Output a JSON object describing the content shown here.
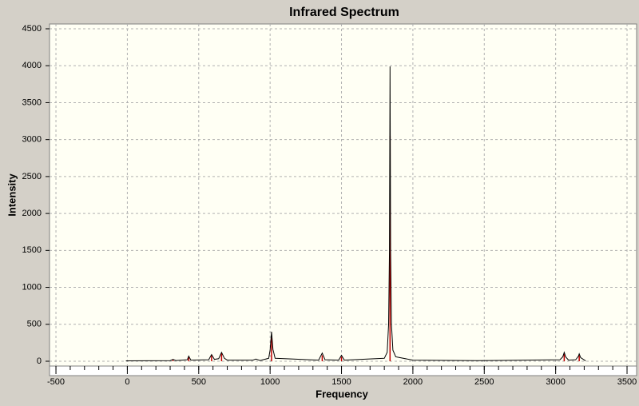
{
  "chart_data": {
    "type": "line",
    "title": "Infrared Spectrum",
    "x_label": "Frequency",
    "y_label": "Intensity",
    "xlim": [
      -545,
      3567
    ],
    "ylim": [
      -65,
      4565
    ],
    "xticks": [
      -500,
      0,
      500,
      1000,
      1500,
      2000,
      2500,
      3000,
      3500
    ],
    "xminorticks": [
      -500,
      -400,
      -300,
      -200,
      -100,
      0,
      100,
      200,
      300,
      400,
      500,
      600,
      700,
      800,
      900,
      1000,
      1100,
      1200,
      1300,
      1400,
      1500,
      1600,
      1700,
      1800,
      1900,
      2000,
      2100,
      2200,
      2300,
      2400,
      2500,
      2600,
      2700,
      2800,
      2900,
      3000,
      3100,
      3200,
      3300,
      3400,
      3500
    ],
    "yticks": [
      0,
      500,
      1000,
      1500,
      2000,
      2500,
      3000,
      3500,
      4000,
      4500
    ],
    "grid": true,
    "spectrum": {
      "color": "#000000",
      "x": [
        -10,
        300,
        320,
        340,
        420,
        430,
        445,
        570,
        590,
        610,
        640,
        660,
        680,
        700,
        880,
        900,
        930,
        990,
        1000,
        1010,
        1020,
        1035,
        1340,
        1365,
        1385,
        1480,
        1500,
        1520,
        1800,
        1820,
        1830,
        1836,
        1840,
        1844,
        1850,
        1860,
        1880,
        2000,
        2450,
        3030,
        3050,
        3060,
        3070,
        3090,
        3140,
        3160,
        3165,
        3175,
        3210
      ],
      "values": [
        5,
        8,
        25,
        10,
        20,
        70,
        15,
        20,
        90,
        25,
        35,
        120,
        40,
        15,
        15,
        30,
        10,
        40,
        150,
        400,
        160,
        40,
        15,
        110,
        20,
        15,
        80,
        15,
        40,
        120,
        500,
        1500,
        3990,
        1500,
        500,
        150,
        60,
        15,
        8,
        20,
        60,
        120,
        60,
        15,
        20,
        70,
        100,
        50,
        5
      ]
    },
    "sticks": {
      "color": "#c00000",
      "x": [
        320,
        430,
        590,
        660,
        1010,
        1365,
        1500,
        1840,
        3060,
        3165
      ],
      "values": [
        20,
        60,
        80,
        110,
        320,
        80,
        60,
        3050,
        100,
        80
      ]
    }
  }
}
